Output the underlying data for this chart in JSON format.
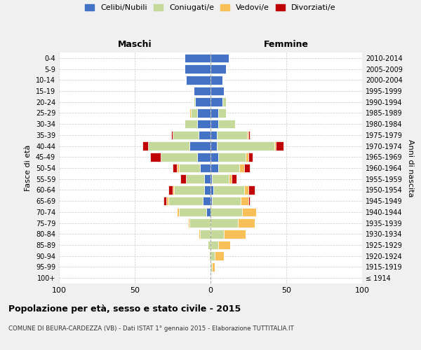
{
  "age_groups": [
    "100+",
    "95-99",
    "90-94",
    "85-89",
    "80-84",
    "75-79",
    "70-74",
    "65-69",
    "60-64",
    "55-59",
    "50-54",
    "45-49",
    "40-44",
    "35-39",
    "30-34",
    "25-29",
    "20-24",
    "15-19",
    "10-14",
    "5-9",
    "0-4"
  ],
  "birth_years": [
    "≤ 1914",
    "1915-1919",
    "1920-1924",
    "1925-1929",
    "1930-1934",
    "1935-1939",
    "1940-1944",
    "1945-1949",
    "1950-1954",
    "1955-1959",
    "1960-1964",
    "1965-1969",
    "1970-1974",
    "1975-1979",
    "1980-1984",
    "1985-1989",
    "1990-1994",
    "1995-1999",
    "2000-2004",
    "2005-2009",
    "2010-2014"
  ],
  "male_celibe": [
    0,
    0,
    0,
    0,
    0,
    0,
    3,
    5,
    4,
    4,
    7,
    9,
    14,
    8,
    9,
    9,
    10,
    11,
    16,
    17,
    17
  ],
  "male_coniugato": [
    0,
    0,
    1,
    2,
    7,
    14,
    18,
    23,
    20,
    12,
    14,
    24,
    27,
    17,
    8,
    4,
    1,
    0,
    0,
    0,
    0
  ],
  "male_vedovo": [
    0,
    0,
    0,
    0,
    1,
    1,
    1,
    1,
    1,
    0,
    1,
    0,
    0,
    0,
    0,
    1,
    0,
    0,
    0,
    0,
    0
  ],
  "male_divorziato": [
    0,
    0,
    0,
    0,
    0,
    0,
    0,
    2,
    3,
    4,
    3,
    7,
    4,
    1,
    0,
    0,
    0,
    0,
    0,
    0,
    0
  ],
  "female_nubile": [
    0,
    0,
    0,
    0,
    0,
    0,
    0,
    1,
    2,
    1,
    5,
    5,
    4,
    4,
    5,
    5,
    8,
    9,
    8,
    10,
    12
  ],
  "female_coniugata": [
    0,
    1,
    3,
    5,
    9,
    18,
    21,
    19,
    20,
    11,
    14,
    18,
    38,
    20,
    11,
    5,
    2,
    0,
    0,
    0,
    0
  ],
  "female_vedova": [
    0,
    2,
    6,
    8,
    14,
    11,
    9,
    5,
    3,
    2,
    3,
    2,
    1,
    1,
    0,
    0,
    0,
    0,
    0,
    0,
    0
  ],
  "female_divorziata": [
    0,
    0,
    0,
    0,
    0,
    0,
    0,
    1,
    4,
    3,
    4,
    3,
    5,
    1,
    0,
    0,
    0,
    0,
    0,
    0,
    0
  ],
  "color_celibe": "#4472c4",
  "color_coniugato": "#c5d99a",
  "color_vedovo": "#f9c05a",
  "color_divorziato": "#c00000",
  "xlim": 100,
  "title": "Popolazione per età, sesso e stato civile - 2015",
  "subtitle": "COMUNE DI BEURA-CARDEZZA (VB) - Dati ISTAT 1° gennaio 2015 - Elaborazione TUTTITALIA.IT",
  "ylabel": "Fasce di età",
  "ylabel_right": "Anni di nascita",
  "xlabel_left": "Maschi",
  "xlabel_right": "Femmine",
  "legend_labels": [
    "Celibi/Nubili",
    "Coniugati/e",
    "Vedovi/e",
    "Divorziati/e"
  ],
  "bg_color": "#f0f0f0",
  "plot_bg_color": "#ffffff"
}
